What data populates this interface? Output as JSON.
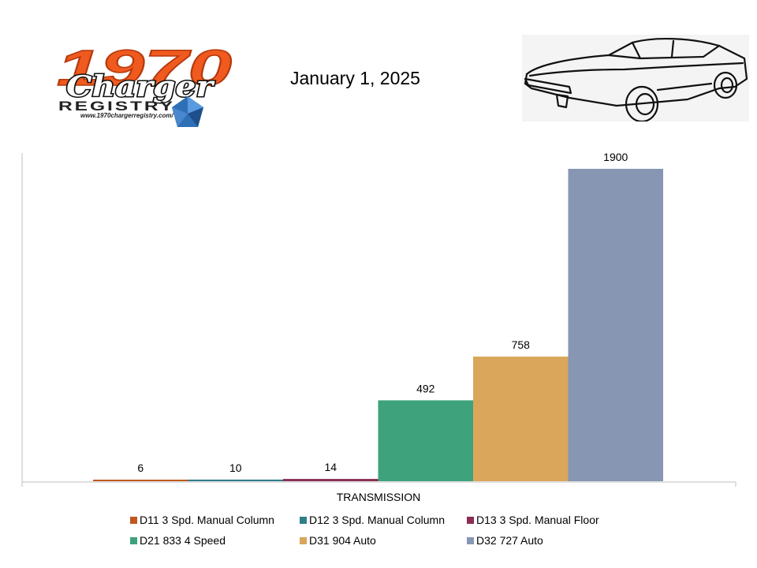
{
  "header": {
    "date": "January 1, 2025",
    "logo": {
      "number": "1970",
      "script": "Charger",
      "subtitle": "REGISTRY",
      "url": "www.1970chargerregistry.com/"
    },
    "car_image": "1970-dodge-charger-line-drawing"
  },
  "chart_data": {
    "type": "bar",
    "xlabel": "TRANSMISSION",
    "categories": [
      "TRANSMISSION"
    ],
    "ylim": [
      0,
      2000
    ],
    "grid": false,
    "legend_position": "bottom",
    "series": [
      {
        "name": "D11 3 Spd. Manual Column",
        "values": [
          6
        ],
        "color": "#C0571F"
      },
      {
        "name": "D12 3 Spd. Manual Column",
        "values": [
          10
        ],
        "color": "#2F7F8A"
      },
      {
        "name": "D13 3 Spd. Manual Floor",
        "values": [
          14
        ],
        "color": "#8B2D55"
      },
      {
        "name": "D21 833 4 Speed",
        "values": [
          492
        ],
        "color": "#3EA27C"
      },
      {
        "name": "D31 904 Auto",
        "values": [
          758
        ],
        "color": "#D9A65C"
      },
      {
        "name": "D32 727 Auto",
        "values": [
          1900
        ],
        "color": "#8696B3"
      }
    ]
  }
}
